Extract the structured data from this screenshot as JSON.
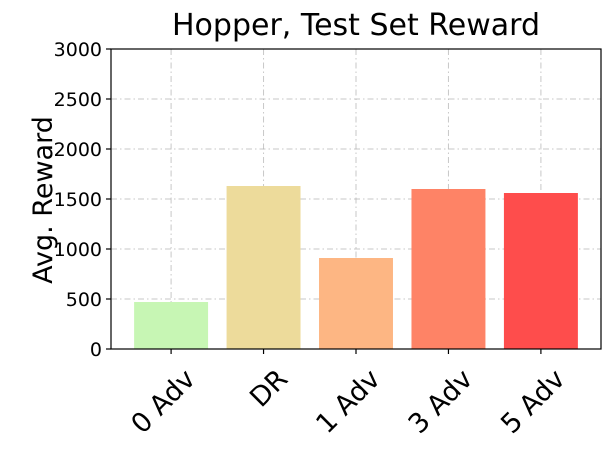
{
  "chart_data": {
    "type": "bar",
    "title": "Hopper, Test Set Reward",
    "xlabel": "",
    "ylabel": "Avg. Reward",
    "categories": [
      "0 Adv",
      "DR",
      "1 Adv",
      "3 Adv",
      "5 Adv"
    ],
    "values": [
      470,
      1630,
      910,
      1600,
      1560
    ],
    "colors": [
      "#c7f6b4",
      "#eddb9b",
      "#fdb683",
      "#fe8366",
      "#fe4d4c"
    ],
    "ylim": [
      0,
      3000
    ],
    "yticks": [
      0,
      500,
      1000,
      1500,
      2000,
      2500,
      3000
    ],
    "grid": true,
    "legend": "none"
  }
}
